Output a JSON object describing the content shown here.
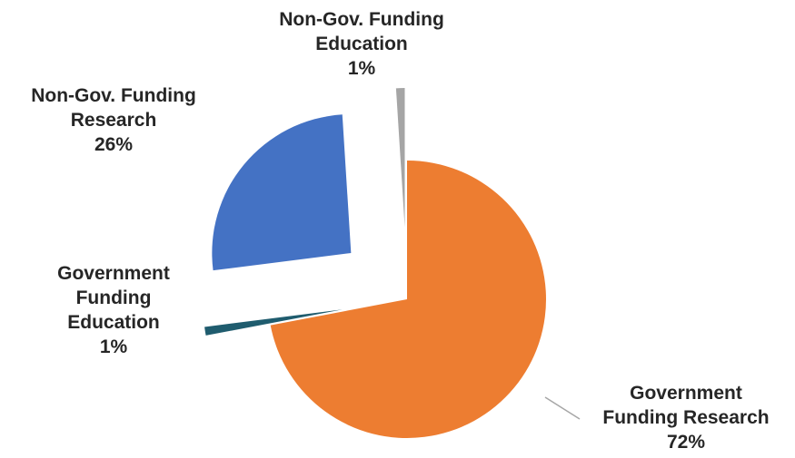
{
  "chart_data": {
    "type": "pie",
    "exploded": true,
    "start_angle_deg": 0,
    "direction": "clockwise",
    "legend": "none",
    "slices": [
      {
        "name": "Government Funding Research",
        "value": 72,
        "color": "#ED7D31",
        "label_lines": [
          "Government",
          "Funding Research",
          "72%"
        ]
      },
      {
        "name": "Government Funding Education",
        "value": 1,
        "color": "#1F5C6E",
        "label_lines": [
          "Government",
          "Funding",
          "Education",
          "1%"
        ]
      },
      {
        "name": "Non-Gov. Funding Research",
        "value": 26,
        "color": "#4472C4",
        "label_lines": [
          "Non-Gov. Funding",
          "Research",
          "26%"
        ]
      },
      {
        "name": "Non-Gov. Funding Education",
        "value": 1,
        "color": "#A5A5A5",
        "label_lines": [
          "Non-Gov. Funding",
          "Education",
          "1%"
        ]
      }
    ]
  }
}
